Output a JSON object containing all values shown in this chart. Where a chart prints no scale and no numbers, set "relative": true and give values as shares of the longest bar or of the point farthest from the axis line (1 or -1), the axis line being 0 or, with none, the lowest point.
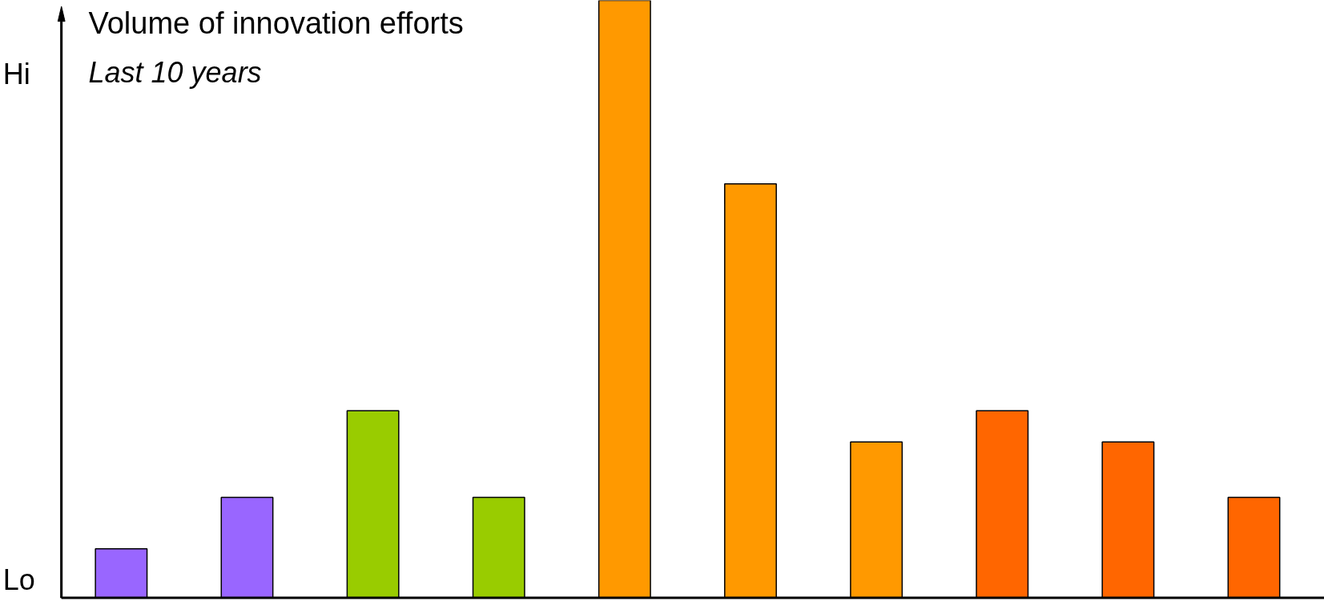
{
  "chart_data": {
    "type": "bar",
    "title": "Volume of innovation efforts",
    "subtitle": "Last 10 years",
    "relative": true,
    "categories": [
      null,
      null,
      null,
      null,
      null,
      null,
      null,
      null,
      null,
      null
    ],
    "values": [
      0.082,
      0.168,
      0.313,
      0.168,
      1.0,
      0.693,
      0.261,
      0.313,
      0.261,
      0.168
    ],
    "colors": [
      "#9966ff",
      "#9966ff",
      "#99cc00",
      "#99cc00",
      "#ff9900",
      "#ff9900",
      "#ff9900",
      "#ff6600",
      "#ff6600",
      "#ff6600"
    ],
    "annotations": [
      "Hi",
      "Lo"
    ]
  }
}
